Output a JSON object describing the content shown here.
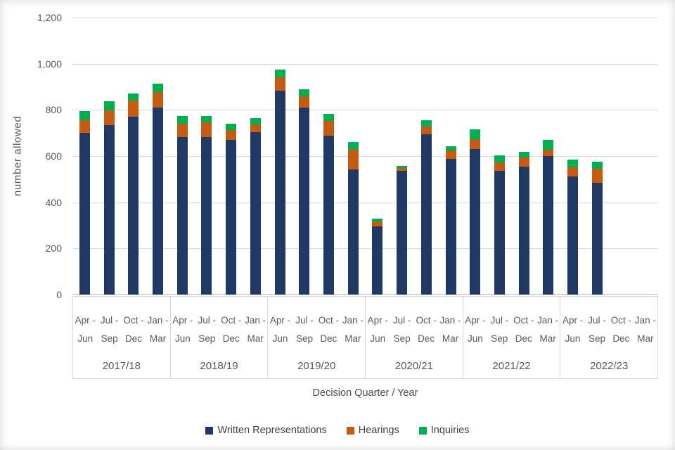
{
  "chart_data": {
    "type": "bar",
    "stacked": true,
    "title": "",
    "xlabel": "Decision Quarter / Year",
    "ylabel": "number allowed",
    "ylim": [
      0,
      1200
    ],
    "ytick_interval": 200,
    "ytick_labels": [
      "0",
      "200",
      "400",
      "600",
      "800",
      "1,000",
      "1,200"
    ],
    "grid": "horizontal",
    "legend_position": "bottom",
    "year_groups": [
      "2017/18",
      "2018/19",
      "2019/20",
      "2020/21",
      "2021/22",
      "2022/23"
    ],
    "quarters_line1": [
      "Apr -",
      "Jul -",
      "Oct -",
      "Jan -"
    ],
    "quarters_line2": [
      "Jun",
      "Sep",
      "Dec",
      "Mar"
    ],
    "series": [
      {
        "name": "Written Representations",
        "color": "#1F3864",
        "values": [
          700,
          735,
          772,
          811,
          682,
          682,
          669,
          703,
          882,
          809,
          687,
          542,
          296,
          535,
          695,
          588,
          631,
          536,
          553,
          599,
          512,
          484,
          null,
          null
        ]
      },
      {
        "name": "Hearings",
        "color": "#C55A11",
        "values": [
          57,
          62,
          68,
          66,
          58,
          64,
          44,
          35,
          59,
          51,
          66,
          84,
          22,
          13,
          33,
          36,
          41,
          37,
          40,
          30,
          39,
          61,
          null,
          null
        ]
      },
      {
        "name": "Inquiries",
        "color": "#00B050",
        "values": [
          38,
          40,
          30,
          37,
          34,
          28,
          27,
          26,
          33,
          29,
          29,
          34,
          10,
          9,
          27,
          18,
          43,
          31,
          25,
          40,
          33,
          31,
          null,
          null
        ]
      }
    ]
  }
}
